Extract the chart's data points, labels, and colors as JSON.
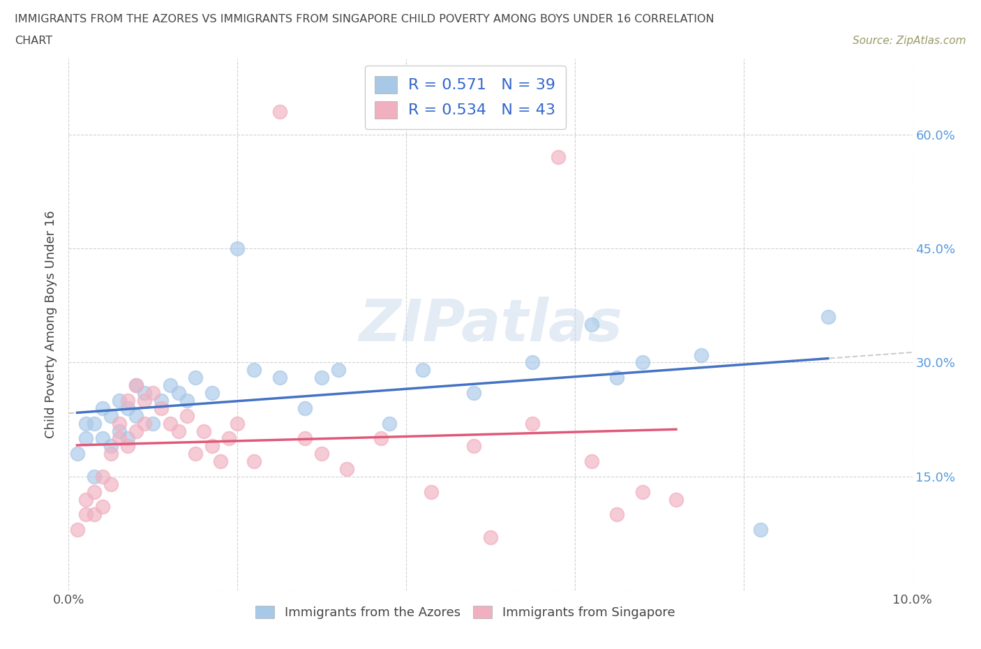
{
  "title_line1": "IMMIGRANTS FROM THE AZORES VS IMMIGRANTS FROM SINGAPORE CHILD POVERTY AMONG BOYS UNDER 16 CORRELATION",
  "title_line2": "CHART",
  "source": "Source: ZipAtlas.com",
  "ylabel": "Child Poverty Among Boys Under 16",
  "legend_label1": "Immigrants from the Azores",
  "legend_label2": "Immigrants from Singapore",
  "R1": 0.571,
  "N1": 39,
  "R2": 0.534,
  "N2": 43,
  "color1": "#A8C8E8",
  "color2": "#F0B0C0",
  "line_color1": "#4472C4",
  "line_color2": "#E05878",
  "dash_color": "#CCCCCC",
  "watermark": "ZIPatlas",
  "xlim": [
    0.0,
    0.1
  ],
  "ylim": [
    0.0,
    0.7
  ],
  "x_ticks": [
    0.0,
    0.02,
    0.04,
    0.06,
    0.08,
    0.1
  ],
  "y_ticks": [
    0.0,
    0.15,
    0.3,
    0.45,
    0.6
  ],
  "azores_x": [
    0.001,
    0.002,
    0.002,
    0.003,
    0.003,
    0.004,
    0.004,
    0.005,
    0.005,
    0.006,
    0.006,
    0.007,
    0.007,
    0.008,
    0.008,
    0.009,
    0.01,
    0.011,
    0.012,
    0.013,
    0.014,
    0.015,
    0.017,
    0.02,
    0.022,
    0.025,
    0.028,
    0.03,
    0.032,
    0.038,
    0.042,
    0.048,
    0.055,
    0.062,
    0.065,
    0.068,
    0.075,
    0.082,
    0.09
  ],
  "azores_y": [
    0.18,
    0.2,
    0.22,
    0.15,
    0.22,
    0.2,
    0.24,
    0.19,
    0.23,
    0.21,
    0.25,
    0.2,
    0.24,
    0.23,
    0.27,
    0.26,
    0.22,
    0.25,
    0.27,
    0.26,
    0.25,
    0.28,
    0.26,
    0.45,
    0.29,
    0.28,
    0.24,
    0.28,
    0.29,
    0.22,
    0.29,
    0.26,
    0.3,
    0.35,
    0.28,
    0.3,
    0.31,
    0.08,
    0.36
  ],
  "singapore_x": [
    0.001,
    0.002,
    0.002,
    0.003,
    0.003,
    0.004,
    0.004,
    0.005,
    0.005,
    0.006,
    0.006,
    0.007,
    0.007,
    0.008,
    0.008,
    0.009,
    0.009,
    0.01,
    0.011,
    0.012,
    0.013,
    0.014,
    0.015,
    0.016,
    0.017,
    0.018,
    0.019,
    0.02,
    0.022,
    0.025,
    0.028,
    0.03,
    0.033,
    0.037,
    0.043,
    0.048,
    0.05,
    0.055,
    0.058,
    0.062,
    0.065,
    0.068,
    0.072
  ],
  "singapore_y": [
    0.08,
    0.1,
    0.12,
    0.1,
    0.13,
    0.11,
    0.15,
    0.14,
    0.18,
    0.2,
    0.22,
    0.19,
    0.25,
    0.21,
    0.27,
    0.22,
    0.25,
    0.26,
    0.24,
    0.22,
    0.21,
    0.23,
    0.18,
    0.21,
    0.19,
    0.17,
    0.2,
    0.22,
    0.17,
    0.63,
    0.2,
    0.18,
    0.16,
    0.2,
    0.13,
    0.19,
    0.07,
    0.22,
    0.57,
    0.17,
    0.1,
    0.13,
    0.12
  ]
}
